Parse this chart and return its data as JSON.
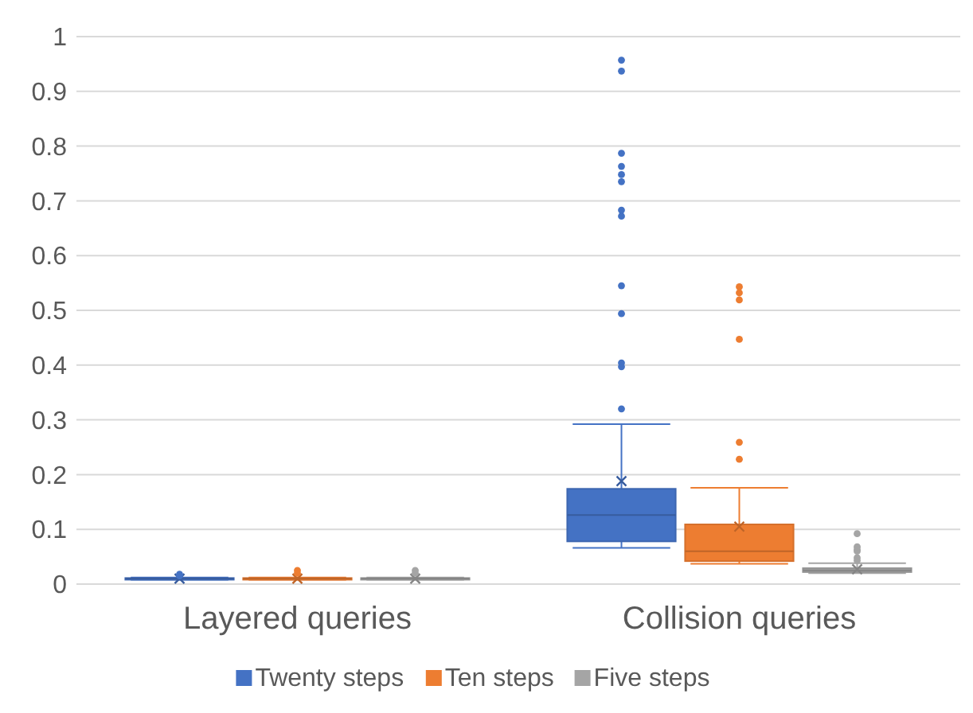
{
  "chart_data": {
    "type": "box",
    "categories": [
      "Layered queries",
      "Collision  queries"
    ],
    "ylim": [
      0,
      1
    ],
    "yticks": [
      0,
      0.1,
      0.2,
      0.3,
      0.4,
      0.5,
      0.6,
      0.7,
      0.8,
      0.9,
      1
    ],
    "grid": "y",
    "legend": "bottom",
    "series": [
      {
        "name": "Twenty steps",
        "color": "#4472c4",
        "boxes": [
          {
            "low": 0.008,
            "q1": 0.009,
            "median": 0.01,
            "q3": 0.011,
            "high": 0.012,
            "mean": 0.01,
            "outliers": [
              0.015,
              0.018
            ]
          },
          {
            "low": 0.066,
            "q1": 0.078,
            "median": 0.126,
            "q3": 0.174,
            "high": 0.292,
            "mean": 0.188,
            "outliers": [
              0.32,
              0.397,
              0.404,
              0.494,
              0.545,
              0.672,
              0.683,
              0.735,
              0.748,
              0.763,
              0.787,
              0.937,
              0.957
            ]
          }
        ]
      },
      {
        "name": "Ten steps",
        "color": "#ed7d31",
        "boxes": [
          {
            "low": 0.008,
            "q1": 0.009,
            "median": 0.01,
            "q3": 0.011,
            "high": 0.012,
            "mean": 0.01,
            "outliers": [
              0.02,
              0.025
            ]
          },
          {
            "low": 0.037,
            "q1": 0.042,
            "median": 0.06,
            "q3": 0.109,
            "high": 0.176,
            "mean": 0.105,
            "outliers": [
              0.228,
              0.259,
              0.447,
              0.519,
              0.532,
              0.543
            ]
          }
        ]
      },
      {
        "name": "Five steps",
        "color": "#a5a5a5",
        "boxes": [
          {
            "low": 0.008,
            "q1": 0.009,
            "median": 0.01,
            "q3": 0.011,
            "high": 0.012,
            "mean": 0.01,
            "outliers": [
              0.02,
              0.025
            ]
          },
          {
            "low": 0.02,
            "q1": 0.022,
            "median": 0.025,
            "q3": 0.029,
            "high": 0.038,
            "mean": 0.027,
            "outliers": [
              0.043,
              0.048,
              0.06,
              0.063,
              0.068,
              0.092
            ]
          }
        ]
      }
    ]
  }
}
